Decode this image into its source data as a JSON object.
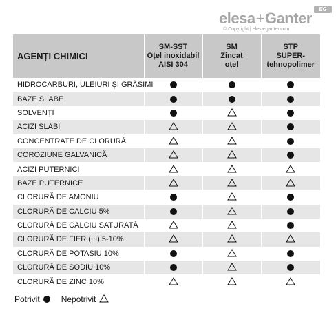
{
  "logo": {
    "brand_left": "elesa",
    "brand_plus": "+",
    "brand_right": "Ganter",
    "mark": "EG",
    "copyright": "© Copyright | elesa-ganter.com"
  },
  "table": {
    "headers": [
      [
        "AGENȚI CHIMICI"
      ],
      [
        "SM-SST",
        "Oțel inoxidabil",
        "AISI 304"
      ],
      [
        "SM",
        "Zincat",
        "oțel"
      ],
      [
        "STP",
        "SUPER-",
        "tehnopolimer"
      ]
    ],
    "rows": [
      {
        "name": "HIDROCARBURI, ULEIURI ȘI GRĂSIMI",
        "values": [
          "suitable",
          "suitable",
          "suitable"
        ]
      },
      {
        "name": "BAZE SLABE",
        "values": [
          "suitable",
          "suitable",
          "suitable"
        ]
      },
      {
        "name": "SOLVENȚI",
        "values": [
          "suitable",
          "unsuitable",
          "suitable"
        ]
      },
      {
        "name": "ACIZI SLABI",
        "values": [
          "unsuitable",
          "unsuitable",
          "suitable"
        ]
      },
      {
        "name": "CONCENTRATE DE CLORURĂ",
        "values": [
          "unsuitable",
          "unsuitable",
          "suitable"
        ]
      },
      {
        "name": "COROZIUNE GALVANICĂ",
        "values": [
          "unsuitable",
          "unsuitable",
          "suitable"
        ]
      },
      {
        "name": "ACIZI PUTERNICI",
        "values": [
          "unsuitable",
          "unsuitable",
          "unsuitable"
        ]
      },
      {
        "name": "BAZE PUTERNICE",
        "values": [
          "unsuitable",
          "unsuitable",
          "unsuitable"
        ]
      },
      {
        "name": "CLORURĂ DE AMONIU",
        "values": [
          "suitable",
          "unsuitable",
          "suitable"
        ]
      },
      {
        "name": "CLORURĂ DE CALCIU 5%",
        "values": [
          "suitable",
          "unsuitable",
          "suitable"
        ]
      },
      {
        "name": "CLORURĂ DE CALCIU SATURATĂ",
        "values": [
          "unsuitable",
          "unsuitable",
          "suitable"
        ]
      },
      {
        "name": "CLORURĂ DE FIER (III) 5-10%",
        "values": [
          "unsuitable",
          "unsuitable",
          "unsuitable"
        ]
      },
      {
        "name": "CLORURĂ DE POTASIU 10%",
        "values": [
          "suitable",
          "unsuitable",
          "suitable"
        ]
      },
      {
        "name": "CLORURĂ DE SODIU 10%",
        "values": [
          "suitable",
          "unsuitable",
          "suitable"
        ]
      },
      {
        "name": "CLORURĂ DE ZINC 10%",
        "values": [
          "unsuitable",
          "unsuitable",
          "unsuitable"
        ]
      }
    ]
  },
  "legend": {
    "suitable_label": "Potrivit",
    "unsuitable_label": "Nepotrivit",
    "suitable_icon": "filled-circle-icon",
    "unsuitable_icon": "triangle-outline-icon"
  }
}
